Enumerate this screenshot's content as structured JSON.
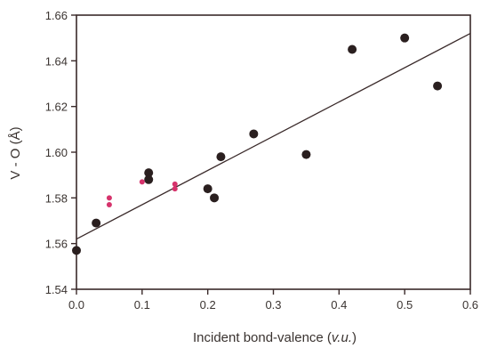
{
  "chart_data": {
    "type": "scatter",
    "title": "",
    "xlabel_prefix": "Incident  bond-valence (",
    "xlabel_unit": "v.u.",
    "xlabel_suffix": ")",
    "ylabel": "V - O  (Å)",
    "xlim": [
      0.0,
      0.6
    ],
    "ylim": [
      1.54,
      1.66
    ],
    "x_ticks": [
      "0.0",
      "0.1",
      "0.2",
      "0.3",
      "0.4",
      "0.5",
      "0.6"
    ],
    "y_ticks": [
      "1.54",
      "1.56",
      "1.58",
      "1.60",
      "1.62",
      "1.64",
      "1.66"
    ],
    "grid": false,
    "legend": "none",
    "series": [
      {
        "color": "#2a1f1f",
        "marker": "large-dot",
        "points": [
          {
            "x": 0.0,
            "y": 1.557
          },
          {
            "x": 0.03,
            "y": 1.569
          },
          {
            "x": 0.11,
            "y": 1.591
          },
          {
            "x": 0.11,
            "y": 1.588
          },
          {
            "x": 0.2,
            "y": 1.584
          },
          {
            "x": 0.21,
            "y": 1.58
          },
          {
            "x": 0.22,
            "y": 1.598
          },
          {
            "x": 0.27,
            "y": 1.608
          },
          {
            "x": 0.35,
            "y": 1.599
          },
          {
            "x": 0.42,
            "y": 1.645
          },
          {
            "x": 0.5,
            "y": 1.65
          },
          {
            "x": 0.55,
            "y": 1.629
          }
        ]
      },
      {
        "color": "#d6336c",
        "marker": "small-dot",
        "points": [
          {
            "x": 0.05,
            "y": 1.58
          },
          {
            "x": 0.05,
            "y": 1.577
          },
          {
            "x": 0.1,
            "y": 1.587
          },
          {
            "x": 0.15,
            "y": 1.586
          },
          {
            "x": 0.15,
            "y": 1.584
          }
        ]
      }
    ],
    "fit_line": {
      "color": "#3a2a2a",
      "x": [
        0.0,
        0.6
      ],
      "y": [
        1.562,
        1.652
      ]
    },
    "frame_color": "#3a2a2a"
  }
}
